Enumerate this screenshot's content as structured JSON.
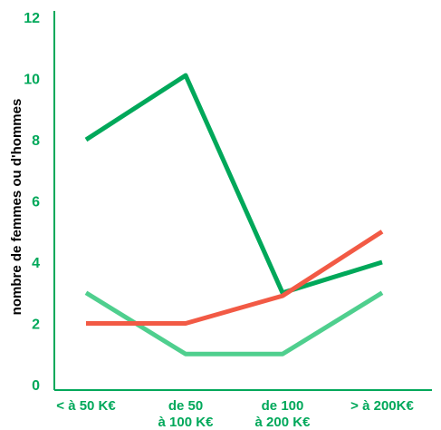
{
  "chart_data": {
    "type": "line",
    "title": "",
    "xlabel": "",
    "ylabel": "nombre de femmes ou d'hommes",
    "categories": [
      [
        "< à 50 K€"
      ],
      [
        "de 50",
        "à 100 K€"
      ],
      [
        "de 100",
        "à 200 K€"
      ],
      [
        "> à 200K€"
      ]
    ],
    "yticks": [
      "0",
      "2",
      "4",
      "6",
      "8",
      "10",
      "12"
    ],
    "ylim": [
      0,
      12
    ],
    "grid": false,
    "legend": "none",
    "series": [
      {
        "values": [
          8,
          10.1,
          3,
          4
        ],
        "color": "#00a85a"
      },
      {
        "values": [
          3,
          1,
          1,
          3
        ],
        "color": "#4fcf8e"
      },
      {
        "values": [
          2,
          2,
          2.9,
          5
        ],
        "color": "#f25a45"
      }
    ],
    "colors": {
      "text": "#00a85a",
      "axis": "#00a85a"
    }
  }
}
